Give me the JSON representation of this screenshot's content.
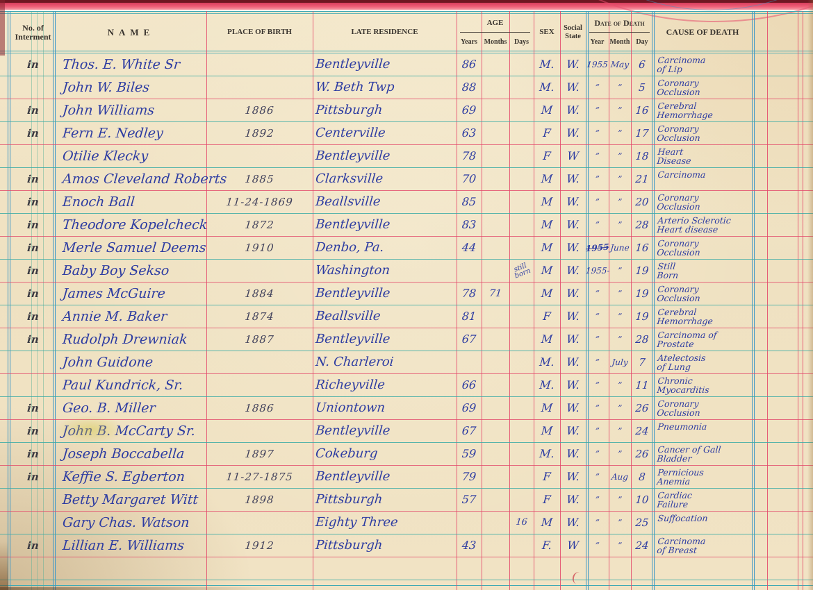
{
  "header": {
    "no_of": "No. of",
    "interment": "Interment",
    "name": "NAME",
    "birth": "PLACE OF BIRTH",
    "residence": "LATE RESIDENCE",
    "age": "AGE",
    "years": "Years",
    "months": "Months",
    "days": "Days",
    "sex": "SEX",
    "social1": "Social",
    "social2": "State",
    "date_of_death": "Date of Death",
    "year": "Year",
    "month": "Month",
    "day": "Day",
    "cause": "CAUSE OF DEATH"
  },
  "rows": [
    {
      "no": "in",
      "name": "Thos. E. White Sr",
      "birth": "",
      "residence": "Bentleyville",
      "years": "86",
      "months": "",
      "days": "",
      "sex": "M.",
      "social": "W.",
      "dyear": "1955",
      "dmonth": "May",
      "dday": "6",
      "cause": "Carcinoma|of Lip"
    },
    {
      "no": "",
      "name": "John W. Biles",
      "birth": "",
      "residence": "W. Beth Twp",
      "years": "88",
      "months": "",
      "days": "",
      "sex": "M.",
      "social": "W.",
      "dyear": "”",
      "dmonth": "”",
      "dday": "5",
      "cause": "Coronary|Occlusion"
    },
    {
      "no": "in",
      "name": "John Williams",
      "birth": "1886",
      "residence": "Pittsburgh",
      "years": "69",
      "months": "",
      "days": "",
      "sex": "M",
      "social": "W.",
      "dyear": "”",
      "dmonth": "”",
      "dday": "16",
      "cause": "Cerebral|Hemorrhage"
    },
    {
      "no": "in",
      "name": "Fern E. Nedley",
      "birth": "1892",
      "residence": "Centerville",
      "years": "63",
      "months": "",
      "days": "",
      "sex": "F",
      "social": "W.",
      "dyear": "”",
      "dmonth": "”",
      "dday": "17",
      "cause": "Coronary|Occlusion"
    },
    {
      "no": "",
      "name": "Otilie Klecky",
      "birth": "",
      "residence": "Bentleyville",
      "years": "78",
      "months": "",
      "days": "",
      "sex": "F",
      "social": "W",
      "dyear": "”",
      "dmonth": "”",
      "dday": "18",
      "cause": "Heart|Disease"
    },
    {
      "no": "in",
      "name": "Amos Cleveland Roberts",
      "birth": "1885",
      "residence": "Clarksville",
      "years": "70",
      "months": "",
      "days": "",
      "sex": "M",
      "social": "W.",
      "dyear": "”",
      "dmonth": "”",
      "dday": "21",
      "cause": "Carcinoma|"
    },
    {
      "no": "in",
      "name": "Enoch Ball",
      "birth": "11-24-1869",
      "residence": "Beallsville",
      "years": "85",
      "months": "",
      "days": "",
      "sex": "M",
      "social": "W.",
      "dyear": "”",
      "dmonth": "”",
      "dday": "20",
      "cause": "Coronary|Occlusion"
    },
    {
      "no": "in",
      "name": "Theodore Kopelcheck",
      "birth": "1872",
      "residence": "Bentleyville",
      "years": "83",
      "months": "",
      "days": "",
      "sex": "M",
      "social": "W.",
      "dyear": "”",
      "dmonth": "”",
      "dday": "28",
      "cause": "Arterio Sclerotic|Heart disease"
    },
    {
      "no": "in",
      "name": "Merle Samuel Deems",
      "birth": "1910",
      "residence": "Denbo, Pa.",
      "years": "44",
      "months": "",
      "days": "",
      "sex": "M",
      "social": "W.",
      "dyear": "1955",
      "dmonth": "June",
      "dday": "16",
      "cause": "Coronary|Occlusion",
      "year_scribble": true
    },
    {
      "no": "in",
      "name": "Baby Boy Sekso",
      "birth": "",
      "residence": "Washington",
      "years": "",
      "months": "",
      "days": "",
      "days_note": "still born",
      "sex": "M",
      "social": "W.",
      "dyear": "1955-",
      "dmonth": "”",
      "dday": "19",
      "cause": "Still|Born"
    },
    {
      "no": "in",
      "name": "James McGuire",
      "birth": "1884",
      "residence": "Bentleyville",
      "years": "78",
      "months": "71",
      "days": "",
      "sex": "M",
      "social": "W.",
      "dyear": "”",
      "dmonth": "”",
      "dday": "19",
      "cause": "Coronary|Occlusion"
    },
    {
      "no": "in",
      "name": "Annie M. Baker",
      "birth": "1874",
      "residence": "Beallsville",
      "years": "81",
      "months": "",
      "days": "",
      "sex": "F",
      "social": "W.",
      "dyear": "”",
      "dmonth": "”",
      "dday": "19",
      "cause": "Cerebral|Hemorrhage"
    },
    {
      "no": "in",
      "name": "Rudolph Drewniak",
      "birth": "1887",
      "residence": "Bentleyville",
      "years": "67",
      "months": "",
      "days": "",
      "sex": "M",
      "social": "W.",
      "dyear": "”",
      "dmonth": "”",
      "dday": "28",
      "cause": "Carcinoma of|Prostate"
    },
    {
      "no": "",
      "name": "John Guidone",
      "birth": "",
      "residence": "N. Charleroi",
      "years": "",
      "months": "",
      "days": "",
      "sex": "M.",
      "social": "W.",
      "dyear": "”",
      "dmonth": "July",
      "dday": "7",
      "cause": "Atelectosis|of Lung"
    },
    {
      "no": "",
      "name": "Paul Kundrick, Sr.",
      "birth": "",
      "residence": "Richeyville",
      "years": "66",
      "months": "",
      "days": "",
      "sex": "M.",
      "social": "W.",
      "dyear": "”",
      "dmonth": "”",
      "dday": "11",
      "cause": "Chronic|Myocarditis"
    },
    {
      "no": "in",
      "name": "Geo. B. Miller",
      "birth": "1886",
      "residence": "Uniontown",
      "years": "69",
      "months": "",
      "days": "",
      "sex": "M",
      "social": "W.",
      "dyear": "”",
      "dmonth": "”",
      "dday": "26",
      "cause": "Coronary|Occlusion"
    },
    {
      "no": "in",
      "name": "John B. McCarty Sr.",
      "birth": "",
      "residence": "Bentleyville",
      "years": "67",
      "months": "",
      "days": "",
      "sex": "M",
      "social": "W.",
      "dyear": "”",
      "dmonth": "”",
      "dday": "24",
      "cause": "Pneumonia|"
    },
    {
      "no": "in",
      "name": "Joseph Boccabella",
      "birth": "1897",
      "residence": "Cokeburg",
      "years": "59",
      "months": "",
      "days": "",
      "sex": "M.",
      "social": "W.",
      "dyear": "”",
      "dmonth": "”",
      "dday": "26",
      "cause": "Cancer of Gall|Bladder"
    },
    {
      "no": "in",
      "name": "Keffie S. Egberton",
      "birth": "11-27-1875",
      "residence": "Bentleyville",
      "years": "79",
      "months": "",
      "days": "",
      "sex": "F",
      "social": "W.",
      "dyear": "”",
      "dmonth": "Aug",
      "dday": "8",
      "cause": "Pernicious|Anemia"
    },
    {
      "no": "",
      "name": "Betty Margaret Witt",
      "birth": "1898",
      "residence": "Pittsburgh",
      "years": "57",
      "months": "",
      "days": "",
      "sex": "F",
      "social": "W.",
      "dyear": "”",
      "dmonth": "”",
      "dday": "10",
      "cause": "Cardiac|Failure"
    },
    {
      "no": "",
      "name": "Gary Chas. Watson",
      "birth": "",
      "residence": "Eighty Three",
      "years": "",
      "months": "",
      "days": "16",
      "sex": "M",
      "social": "W.",
      "dyear": "”",
      "dmonth": "”",
      "dday": "25",
      "cause": "Suffocation|"
    },
    {
      "no": "in",
      "name": "Lillian E. Williams",
      "birth": "1912",
      "residence": "Pittsburgh",
      "years": "43",
      "months": "",
      "days": "",
      "sex": "F.",
      "social": "W",
      "dyear": "”",
      "dmonth": "”",
      "dday": "24",
      "cause": "Carcinoma|of Breast"
    },
    {
      "no": "",
      "name": "",
      "birth": "",
      "residence": "",
      "years": "",
      "months": "",
      "days": "",
      "sex": "",
      "social": "",
      "dyear": "",
      "dmonth": "",
      "dday": "",
      "cause": ""
    },
    {
      "no": "",
      "name": "",
      "birth": "",
      "residence": "",
      "years": "",
      "months": "",
      "days": "",
      "sex": "",
      "social": "",
      "dyear": "",
      "dmonth": "",
      "dday": "",
      "cause": ""
    }
  ],
  "colors": {
    "paper": "#f0e2c4",
    "rule_red": "#e4466a",
    "rule_teal": "#3fa9b4",
    "rule_blue": "#3e97c6",
    "ink_blue": "#2d3ca2",
    "ink_dark": "#42425c",
    "band_pink": "#ee5f78",
    "band_maroon": "#6f1722"
  }
}
